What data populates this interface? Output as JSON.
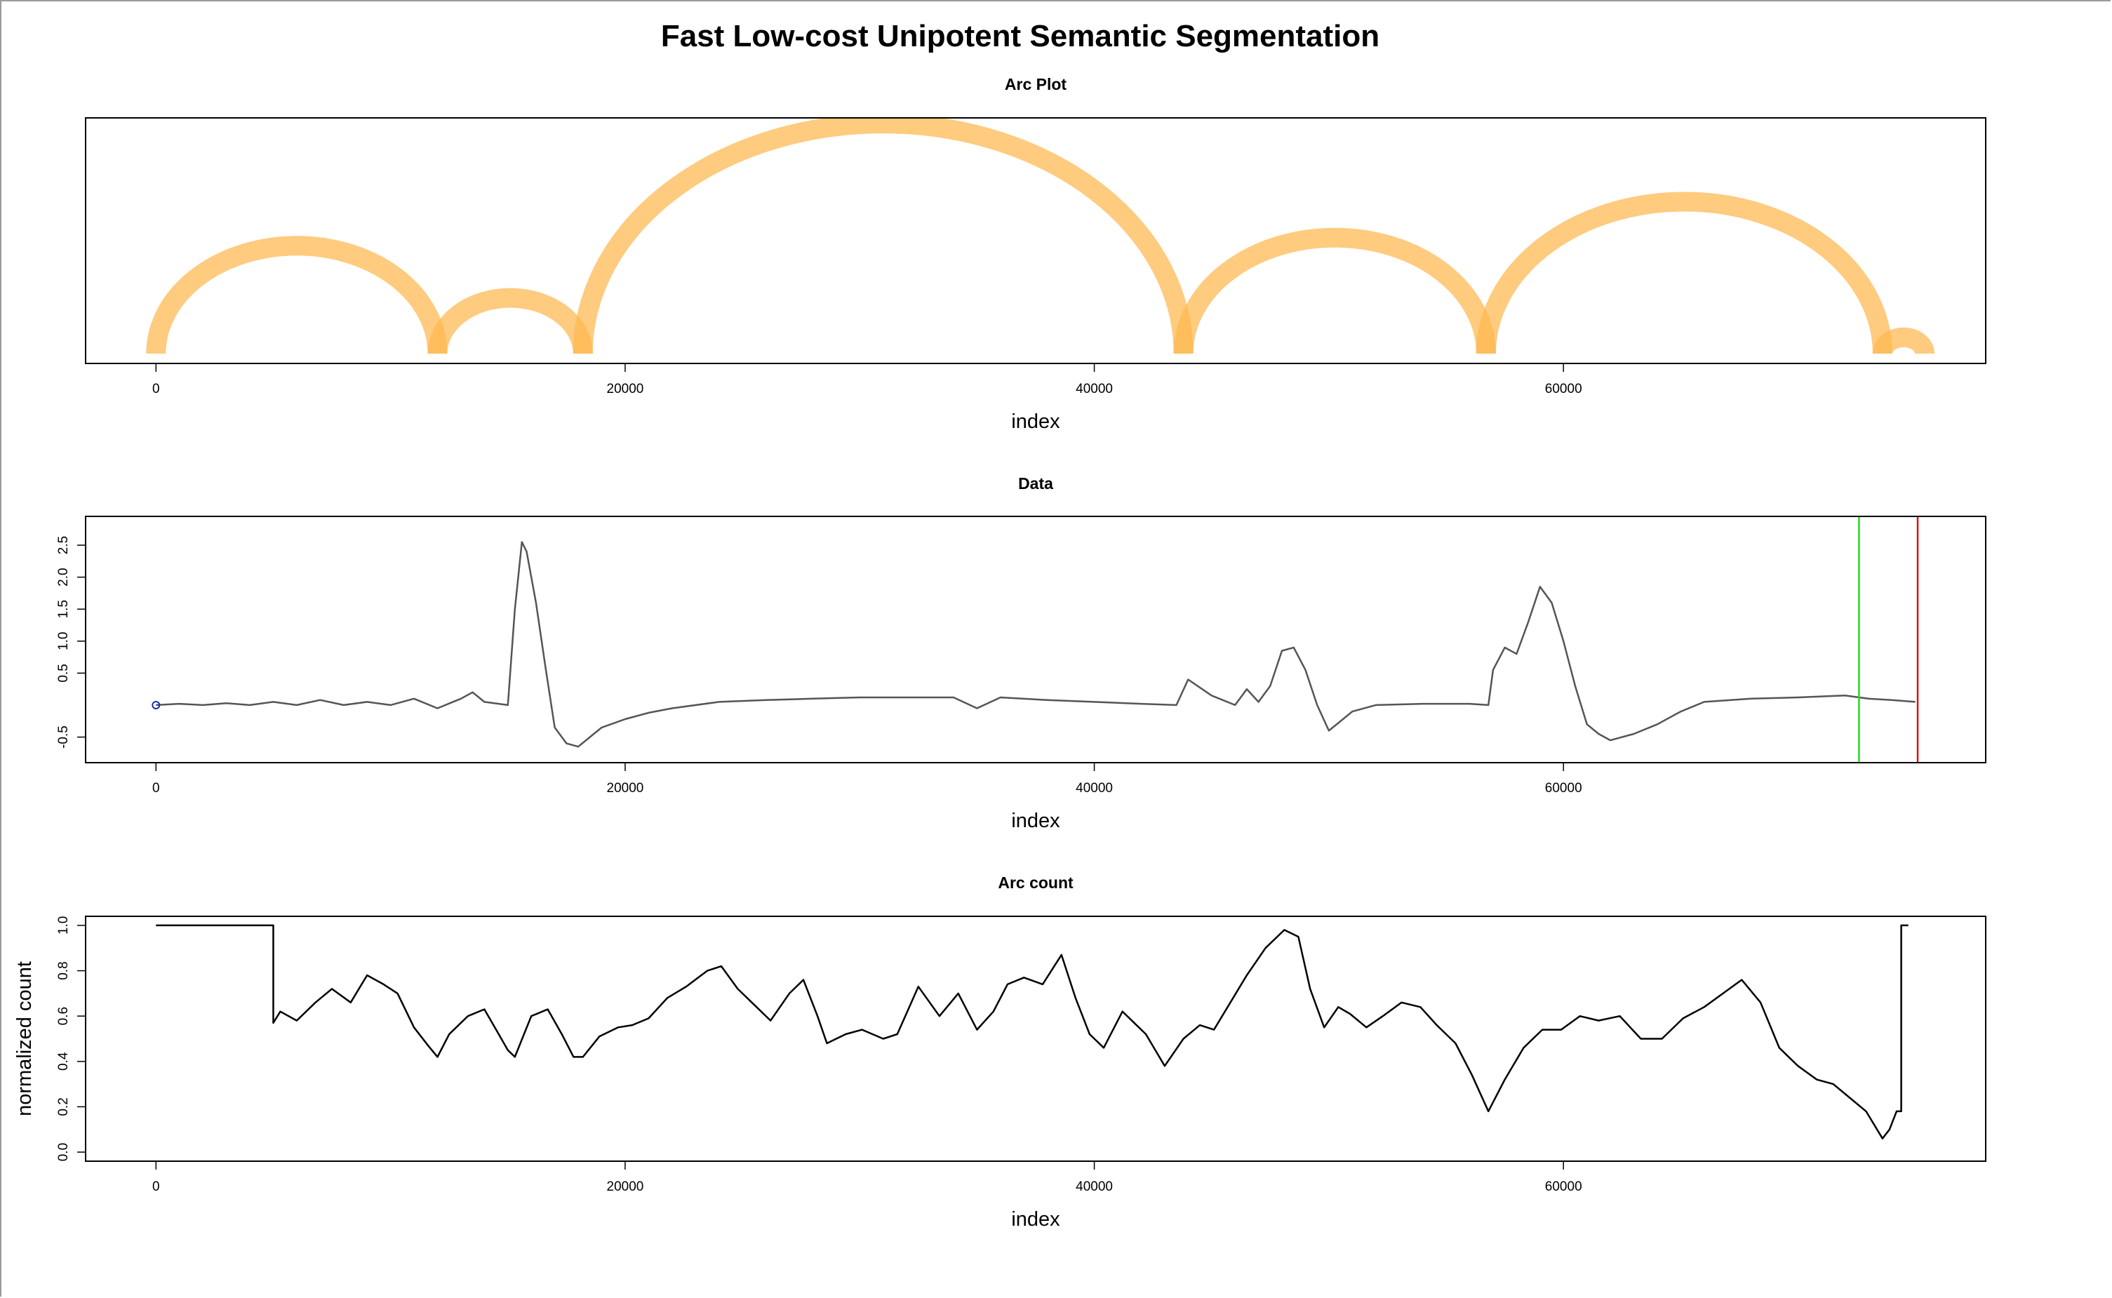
{
  "page": {
    "title": "Fast Low-cost Unipotent Semantic Segmentation"
  },
  "chart_data": [
    {
      "type": "arc",
      "title": "Arc Plot",
      "xlabel": "index",
      "ylabel": "",
      "xlim": [
        -3000,
        78000
      ],
      "xticks": [
        0,
        20000,
        40000,
        60000
      ],
      "arc_color": "#ffb74d",
      "arcs": [
        {
          "from": 0,
          "to": 12000
        },
        {
          "from": 12000,
          "to": 18200
        },
        {
          "from": 18200,
          "to": 43800
        },
        {
          "from": 43800,
          "to": 56700
        },
        {
          "from": 56700,
          "to": 73600
        },
        {
          "from": 73600,
          "to": 75400
        }
      ]
    },
    {
      "type": "line",
      "title": "Data",
      "xlabel": "index",
      "ylabel": "",
      "xlim": [
        -3000,
        78000
      ],
      "ylim": [
        -0.9,
        2.95
      ],
      "xticks": [
        0,
        20000,
        40000,
        60000
      ],
      "yticks": [
        -0.5,
        0.5,
        1.0,
        1.5,
        2.0,
        2.5
      ],
      "ytick_labels": [
        "-0.5",
        "0.5",
        "1.0",
        "1.5",
        "2.0",
        "2.5"
      ],
      "line_color": "#555555",
      "marker": {
        "x": 0,
        "y": 0.0,
        "color": "#1a2fb0"
      },
      "vlines": [
        {
          "x": 72600,
          "color": "#22dd22"
        },
        {
          "x": 75100,
          "color": "#dd1111"
        }
      ],
      "series": [
        {
          "x": [
            0,
            1000,
            2000,
            3000,
            4000,
            5000,
            6000,
            7000,
            8000,
            9000,
            10000,
            11000,
            12000,
            13000,
            13500,
            14000,
            15000,
            15300,
            15600,
            15800,
            16200,
            16600,
            17000,
            17500,
            18000,
            18500,
            19000,
            20000,
            21000,
            22000,
            24000,
            26000,
            28000,
            30000,
            32000,
            34000,
            35000,
            36000,
            38000,
            40000,
            42000,
            43500,
            44000,
            45000,
            46000,
            46500,
            47000,
            47500,
            48000,
            48500,
            49000,
            49500,
            50000,
            51000,
            52000,
            54000,
            56000,
            56800,
            57000,
            57500,
            58000,
            58500,
            59000,
            59500,
            60000,
            60500,
            61000,
            61500,
            62000,
            63000,
            64000,
            65000,
            66000,
            68000,
            70000,
            72000,
            73000,
            74000,
            75000
          ],
          "y": [
            0.0,
            0.02,
            0.0,
            0.03,
            0.0,
            0.05,
            0.0,
            0.08,
            0.0,
            0.05,
            0.0,
            0.1,
            -0.05,
            0.1,
            0.2,
            0.05,
            0.0,
            1.5,
            2.55,
            2.4,
            1.6,
            0.6,
            -0.35,
            -0.6,
            -0.65,
            -0.5,
            -0.35,
            -0.22,
            -0.12,
            -0.05,
            0.05,
            0.08,
            0.1,
            0.12,
            0.12,
            0.12,
            -0.05,
            0.12,
            0.08,
            0.05,
            0.02,
            0.0,
            0.4,
            0.15,
            0.0,
            0.25,
            0.05,
            0.3,
            0.85,
            0.9,
            0.55,
            0.0,
            -0.4,
            -0.1,
            0.0,
            0.02,
            0.02,
            0.0,
            0.55,
            0.9,
            0.8,
            1.3,
            1.85,
            1.6,
            1.0,
            0.3,
            -0.3,
            -0.45,
            -0.55,
            -0.45,
            -0.3,
            -0.1,
            0.05,
            0.1,
            0.12,
            0.15,
            0.1,
            0.08,
            0.05
          ]
        }
      ]
    },
    {
      "type": "line",
      "title": "Arc count",
      "xlabel": "index",
      "ylabel": "normalized count",
      "xlim": [
        -3000,
        78000
      ],
      "ylim": [
        -0.04,
        1.04
      ],
      "xticks": [
        0,
        20000,
        40000,
        60000
      ],
      "yticks": [
        0.0,
        0.2,
        0.4,
        0.6,
        0.8,
        1.0
      ],
      "ytick_labels": [
        "0.0",
        "0.2",
        "0.4",
        "0.6",
        "0.8",
        "1.0"
      ],
      "line_color": "#000000",
      "series": [
        {
          "x": [
            0,
            5000,
            5000,
            5300,
            6000,
            6800,
            7500,
            8300,
            9000,
            9700,
            10300,
            11000,
            11600,
            12000,
            12500,
            13300,
            14000,
            14500,
            15000,
            15300,
            16000,
            16700,
            17300,
            17800,
            18200,
            18900,
            19700,
            20300,
            21000,
            21800,
            22600,
            23500,
            24100,
            24800,
            25400,
            26200,
            27000,
            27600,
            28200,
            28600,
            29400,
            30100,
            31000,
            31600,
            32500,
            33400,
            34200,
            35000,
            35700,
            36300,
            37000,
            37800,
            38600,
            39200,
            39800,
            40400,
            41200,
            42200,
            43000,
            43800,
            44500,
            45100,
            45800,
            46500,
            47300,
            48100,
            48700,
            49200,
            49800,
            50400,
            50900,
            51600,
            52300,
            53100,
            53900,
            54600,
            55400,
            56100,
            56800,
            57500,
            58300,
            59100,
            59900,
            60700,
            61500,
            62400,
            63300,
            64200,
            65100,
            66000,
            66800,
            67600,
            68400,
            69200,
            70000,
            70800,
            71500,
            72200,
            72900,
            73600,
            73900,
            74200,
            74400,
            74400,
            74700
          ],
          "y": [
            1.0,
            1.0,
            0.57,
            0.62,
            0.58,
            0.66,
            0.72,
            0.66,
            0.78,
            0.74,
            0.7,
            0.55,
            0.47,
            0.42,
            0.52,
            0.6,
            0.63,
            0.54,
            0.45,
            0.42,
            0.6,
            0.63,
            0.52,
            0.42,
            0.42,
            0.51,
            0.55,
            0.56,
            0.59,
            0.68,
            0.73,
            0.8,
            0.82,
            0.72,
            0.66,
            0.58,
            0.7,
            0.76,
            0.6,
            0.48,
            0.52,
            0.54,
            0.5,
            0.52,
            0.73,
            0.6,
            0.7,
            0.54,
            0.62,
            0.74,
            0.77,
            0.74,
            0.87,
            0.68,
            0.52,
            0.46,
            0.62,
            0.52,
            0.38,
            0.5,
            0.56,
            0.54,
            0.66,
            0.78,
            0.9,
            0.98,
            0.95,
            0.72,
            0.55,
            0.64,
            0.61,
            0.55,
            0.6,
            0.66,
            0.64,
            0.56,
            0.48,
            0.34,
            0.18,
            0.32,
            0.46,
            0.54,
            0.54,
            0.6,
            0.58,
            0.6,
            0.5,
            0.5,
            0.59,
            0.64,
            0.7,
            0.76,
            0.66,
            0.46,
            0.38,
            0.32,
            0.3,
            0.24,
            0.18,
            0.06,
            0.1,
            0.18,
            0.18,
            1.0,
            1.0
          ]
        }
      ]
    }
  ]
}
